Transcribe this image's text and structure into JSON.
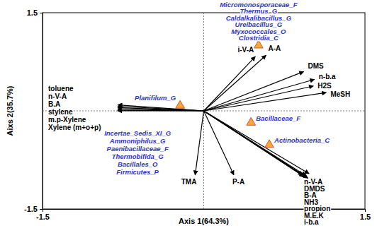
{
  "chart_data": {
    "type": "biplot",
    "x_label": "Axis 1(64.3%)",
    "y_label": "Aixs 2(35.7%)",
    "xlim": [
      -1.5,
      1.5
    ],
    "ylim": [
      -1.5,
      1.5
    ],
    "xticks": [
      -1.5,
      1.5
    ],
    "yticks": [
      -1.5,
      1.5
    ],
    "origin": [
      0,
      0
    ],
    "vectors": {
      "labels": [
        "toluene",
        "n-V-A",
        "B.A",
        "stylene",
        "m.p-Xylene",
        "Xylene (m+o+p)",
        "i-V-A",
        "A-A",
        "DMS",
        "n-b.a",
        "H2S",
        "MeSH",
        "n-V-A",
        "DMDS",
        "B-A",
        "NH3",
        "propion",
        "M.E.K",
        "i-b.a",
        "TMA",
        "P-A"
      ],
      "x": [
        -0.8,
        -0.8,
        -0.8,
        -0.8,
        -0.8,
        -0.8,
        0.48,
        0.58,
        0.93,
        1.03,
        1.02,
        1.14,
        0.98,
        0.92,
        0.95,
        0.93,
        0.94,
        0.96,
        0.97,
        -0.08,
        0.28
      ],
      "y": [
        0.09,
        0.07,
        0.05,
        0.03,
        0.01,
        0.0,
        0.83,
        0.85,
        0.6,
        0.48,
        0.38,
        0.28,
        -0.96,
        -0.98,
        -0.99,
        -1.0,
        -1.01,
        -1.02,
        -1.03,
        -0.98,
        -0.98
      ],
      "color": "#000000",
      "marker": "arrow"
    },
    "species": {
      "labels": [
        [
          "Planifilum_G",
          "Incertae_Sedis_XI_G",
          "Ammoniphilus_G",
          "Paenibacillaceae_F",
          "Thermobifida_G",
          "Bacillales_O",
          "Firmicutes_P"
        ],
        [
          "Micromonosporaceae_F",
          "Thermus_G",
          "Caldalkalibacillus_G",
          "Ureibacillus_G",
          "Myxococcales_O",
          "Clostridia_C"
        ],
        [
          "Bacillaceae_F"
        ],
        [
          "Actinobacteria_C"
        ]
      ],
      "x": [
        -0.22,
        0.51,
        0.44,
        0.61
      ],
      "y": [
        0.08,
        1.0,
        -0.18,
        -0.52
      ],
      "color": "#f7a833",
      "marker": "triangle"
    }
  }
}
